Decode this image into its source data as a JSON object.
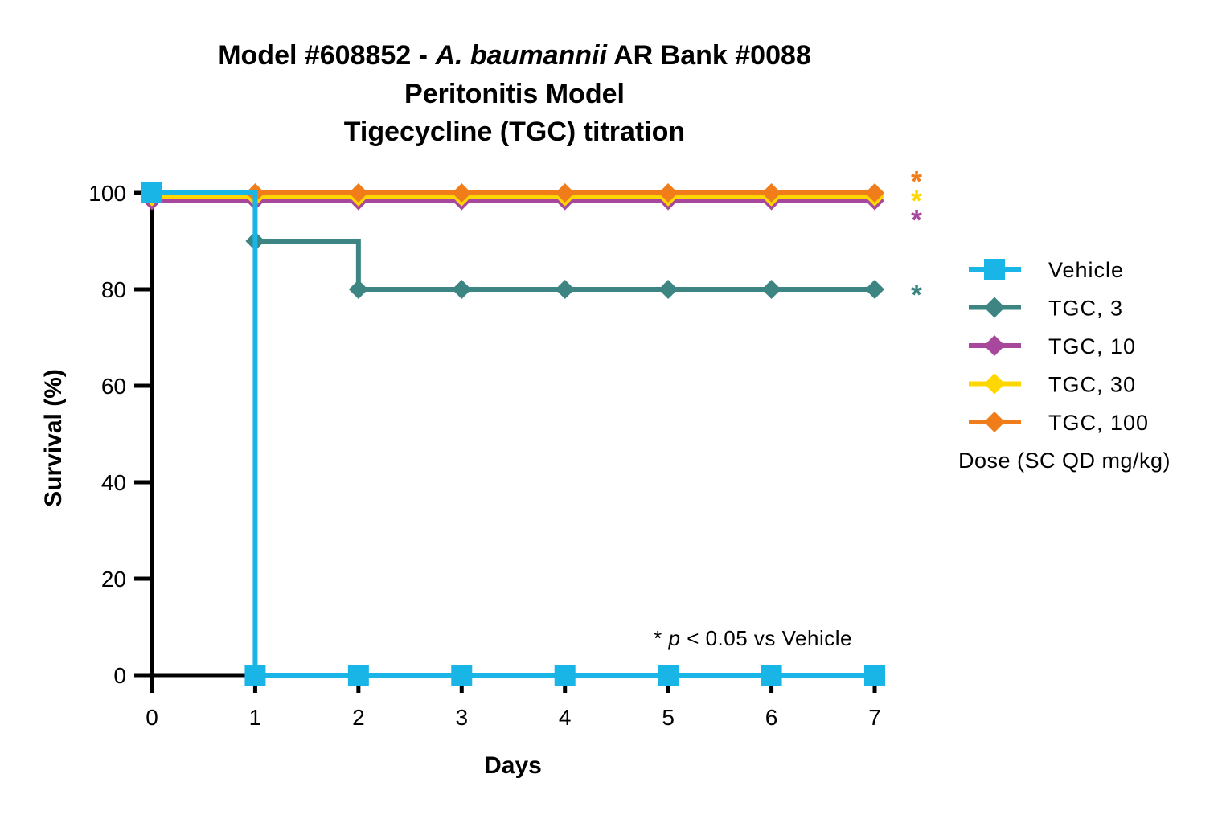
{
  "chart_data": {
    "type": "line",
    "title_lines": [
      {
        "parts": [
          {
            "text": "Model #608852 - ",
            "italic": false
          },
          {
            "text": "A. baumannii",
            "italic": true
          },
          {
            "text": " AR Bank #0088",
            "italic": false
          }
        ]
      },
      {
        "parts": [
          {
            "text": "Peritonitis Model",
            "italic": false
          }
        ]
      },
      {
        "parts": [
          {
            "text": "Tigecycline (TGC) titration",
            "italic": false
          }
        ]
      }
    ],
    "xlabel": "Days",
    "ylabel": "Survival  (%)",
    "xlim": [
      0,
      7
    ],
    "ylim": [
      0,
      100
    ],
    "x_ticks": [
      0,
      1,
      2,
      3,
      4,
      5,
      6,
      7
    ],
    "y_ticks": [
      0,
      20,
      40,
      60,
      80,
      100
    ],
    "step": true,
    "series": [
      {
        "name": "TGC, 3",
        "color": "#3d8582",
        "marker": "diamond",
        "x": [
          1,
          2,
          3,
          4,
          5,
          6,
          7
        ],
        "y": [
          90,
          80,
          80,
          80,
          80,
          80,
          80
        ],
        "display_offset": 0,
        "significant": true
      },
      {
        "name": "TGC, 10",
        "color": "#a8489c",
        "marker": "diamond",
        "x": [
          0,
          1,
          2,
          3,
          4,
          5,
          6,
          7
        ],
        "y": [
          100,
          100,
          100,
          100,
          100,
          100,
          100,
          100
        ],
        "display_offset": -1.6,
        "significant": true
      },
      {
        "name": "TGC, 30",
        "color": "#ffd700",
        "marker": "diamond",
        "x": [
          0,
          1,
          2,
          3,
          4,
          5,
          6,
          7
        ],
        "y": [
          100,
          100,
          100,
          100,
          100,
          100,
          100,
          100
        ],
        "display_offset": -0.8,
        "significant": true
      },
      {
        "name": "TGC, 100",
        "color": "#f07d1a",
        "marker": "diamond",
        "x": [
          0,
          1,
          2,
          3,
          4,
          5,
          6,
          7
        ],
        "y": [
          100,
          100,
          100,
          100,
          100,
          100,
          100,
          100
        ],
        "display_offset": 0,
        "significant": true
      },
      {
        "name": "Vehicle",
        "color": "#19b5e6",
        "marker": "square",
        "x": [
          0,
          1,
          2,
          3,
          4,
          5,
          6,
          7
        ],
        "y": [
          100,
          0,
          0,
          0,
          0,
          0,
          0,
          0
        ],
        "display_offset": 0,
        "significant": false
      }
    ],
    "legend_order": [
      "Vehicle",
      "TGC, 3",
      "TGC, 10",
      "TGC, 30",
      "TGC, 100"
    ],
    "legend_position": "right",
    "legend_title": "Dose (SC QD mg/kg)",
    "significance_marker": "*",
    "annotation": {
      "prefix": "* ",
      "italic": "p",
      "suffix": " < 0.05 vs Vehicle"
    },
    "grid": false
  }
}
